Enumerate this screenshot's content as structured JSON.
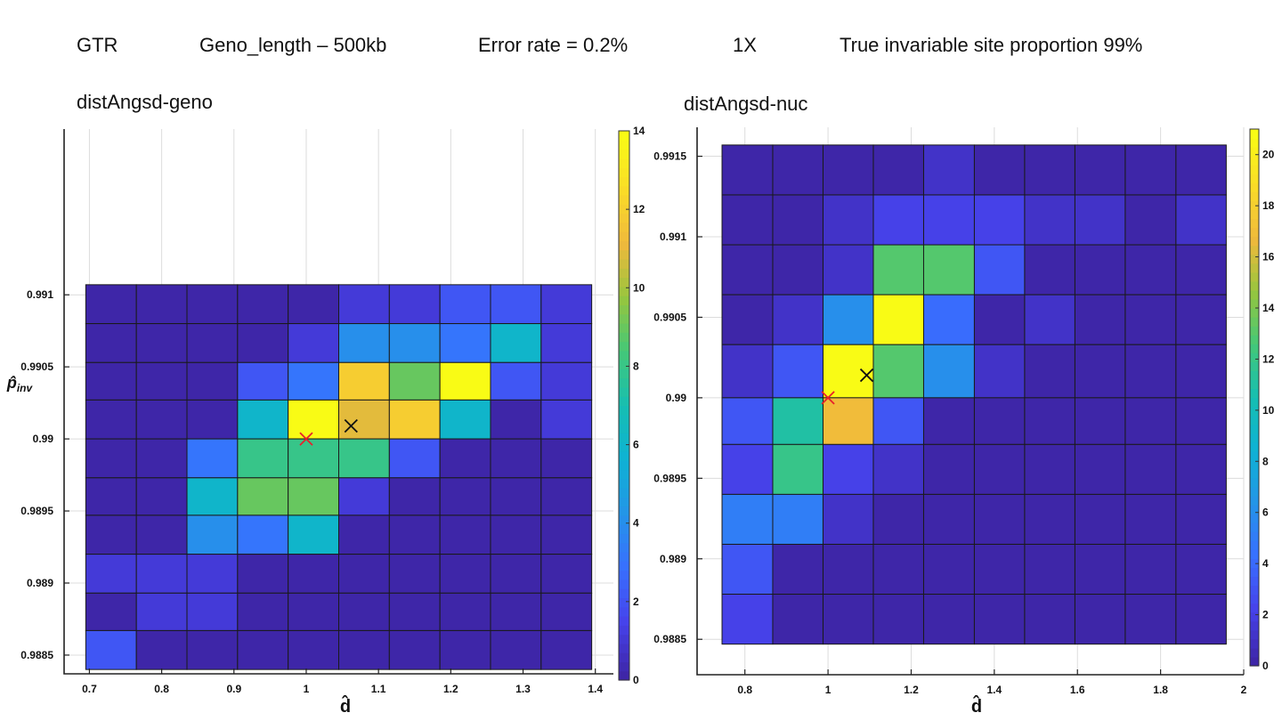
{
  "header": {
    "model": "GTR",
    "genome_length": "Geno_length – 500kb",
    "error_rate": "Error rate = 0.2%",
    "coverage": "1X",
    "invariable": "True invariable site proportion 99%"
  },
  "chart_data": [
    {
      "type": "heatmap",
      "title": "distAngsd-geno",
      "xlabel": "d̂",
      "ylabel": "p̂inv",
      "xlim": [
        0.665,
        1.425
      ],
      "ylim": [
        0.98837,
        0.99215
      ],
      "x_ticks": [
        0.7,
        0.8,
        0.9,
        1,
        1.1,
        1.2,
        1.3,
        1.4
      ],
      "x_tick_labels": [
        "0.7",
        "0.8",
        "0.9",
        "1",
        "1.1",
        "1.2",
        "1.3",
        "1.4"
      ],
      "y_ticks": [
        0.9885,
        0.989,
        0.9895,
        0.99,
        0.9905,
        0.991
      ],
      "y_tick_labels": [
        "0.9885",
        "0.989",
        "0.9895",
        "0.99",
        "0.9905",
        "0.991"
      ],
      "x_edges": [
        0.695,
        0.765,
        0.835,
        0.905,
        0.975,
        1.045,
        1.115,
        1.185,
        1.255,
        1.325,
        1.395
      ],
      "y_edges": [
        0.99107,
        0.9908,
        0.99053,
        0.99027,
        0.99,
        0.98973,
        0.98947,
        0.9892,
        0.98893,
        0.98867,
        0.9884
      ],
      "values": [
        [
          0,
          0,
          0,
          0,
          0,
          1,
          1,
          2,
          2,
          1
        ],
        [
          0,
          0,
          0,
          0,
          1,
          4,
          4,
          3,
          6,
          1
        ],
        [
          0,
          0,
          0,
          2,
          3,
          12,
          9,
          14,
          2,
          1
        ],
        [
          0,
          0,
          0,
          6,
          14,
          11,
          12,
          6,
          0,
          1
        ],
        [
          0,
          0,
          3,
          8,
          8,
          8,
          2,
          0,
          0,
          0
        ],
        [
          0,
          0,
          6,
          9,
          9,
          1,
          0,
          0,
          0,
          0
        ],
        [
          0,
          0,
          4,
          3,
          6,
          0,
          0,
          0,
          0,
          0
        ],
        [
          1,
          1,
          1,
          0,
          0,
          0,
          0,
          0,
          0,
          0
        ],
        [
          0,
          1,
          1,
          0,
          0,
          0,
          0,
          0,
          0,
          0
        ],
        [
          2,
          0,
          0,
          0,
          0,
          0,
          0,
          0,
          0,
          0
        ]
      ],
      "colorbar": {
        "min": 0,
        "max": 14,
        "ticks": [
          0,
          2,
          4,
          6,
          8,
          10,
          12,
          14
        ]
      },
      "markers": [
        {
          "x": 1.0,
          "y": 0.99,
          "color": "#e8212b"
        },
        {
          "x": 1.062,
          "y": 0.99009,
          "color": "#111111"
        }
      ],
      "grid": true
    },
    {
      "type": "heatmap",
      "title": "distAngsd-nuc",
      "xlabel": "d̂",
      "ylabel": "",
      "xlim": [
        0.685,
        2.0
      ],
      "ylim": [
        0.98828,
        0.99168
      ],
      "x_ticks": [
        0.8,
        1,
        1.2,
        1.4,
        1.6,
        1.8,
        2
      ],
      "x_tick_labels": [
        "0.8",
        "1",
        "1.2",
        "1.4",
        "1.6",
        "1.8",
        "2"
      ],
      "y_ticks": [
        0.9885,
        0.989,
        0.9895,
        0.99,
        0.9905,
        0.991,
        0.9915
      ],
      "y_tick_labels": [
        "0.9885",
        "0.989",
        "0.9895",
        "0.99",
        "0.9905",
        "0.991",
        "0.9915"
      ],
      "x_edges": [
        0.745,
        0.867,
        0.988,
        1.109,
        1.23,
        1.352,
        1.473,
        1.594,
        1.715,
        1.837,
        1.958
      ],
      "y_edges": [
        0.99157,
        0.99126,
        0.99095,
        0.99064,
        0.99033,
        0.99,
        0.98971,
        0.9894,
        0.98909,
        0.98878,
        0.98847
      ],
      "values": [
        [
          0,
          0,
          0,
          0,
          1,
          0,
          0,
          0,
          0,
          0
        ],
        [
          0,
          0,
          1,
          2,
          2,
          2,
          1,
          1,
          0,
          1
        ],
        [
          0,
          0,
          1,
          13,
          13,
          3,
          0,
          0,
          0,
          0
        ],
        [
          0,
          1,
          6,
          21,
          4,
          0,
          1,
          0,
          0,
          0
        ],
        [
          1,
          3,
          21,
          13,
          6,
          1,
          0,
          0,
          0,
          0
        ],
        [
          3,
          11,
          17,
          3,
          0,
          0,
          0,
          0,
          0,
          0
        ],
        [
          2,
          12,
          2,
          1,
          0,
          0,
          0,
          0,
          0,
          0
        ],
        [
          5,
          5,
          1,
          0,
          0,
          0,
          0,
          0,
          0,
          0
        ],
        [
          3,
          0,
          0,
          0,
          0,
          0,
          0,
          0,
          0,
          0
        ],
        [
          2,
          0,
          0,
          0,
          0,
          0,
          0,
          0,
          0,
          0
        ]
      ],
      "colorbar": {
        "min": 0,
        "max": 21,
        "ticks": [
          0,
          2,
          4,
          6,
          8,
          10,
          12,
          14,
          16,
          18,
          20
        ]
      },
      "markers": [
        {
          "x": 1.0,
          "y": 0.99,
          "color": "#e8212b"
        },
        {
          "x": 1.093,
          "y": 0.99014,
          "color": "#111111"
        }
      ],
      "grid": true
    }
  ]
}
